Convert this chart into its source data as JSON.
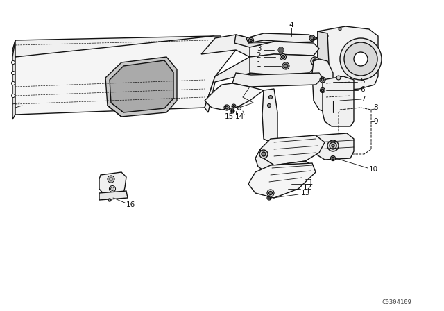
{
  "bg_color": "#ffffff",
  "line_color": "#111111",
  "watermark": "C0304109",
  "figsize": [
    6.4,
    4.48
  ],
  "dpi": 100,
  "lw_main": 1.0,
  "lw_thin": 0.6,
  "lw_dash": 0.5
}
